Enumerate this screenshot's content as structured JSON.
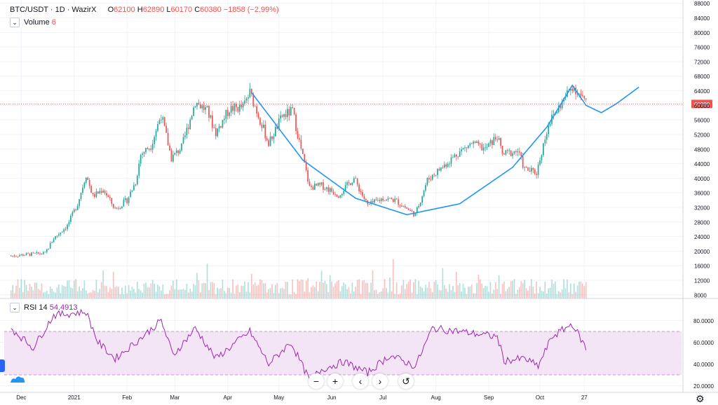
{
  "header": {
    "symbol": "BTC/USDT · 1D · WazirX",
    "open_label": "O",
    "open": "62100",
    "high_label": "H",
    "high": "62890",
    "low_label": "L",
    "low": "60170",
    "close_label": "C",
    "close": "60380",
    "change": "−1858 (−2.99%)"
  },
  "volume_legend": {
    "label": "Volume",
    "value": "6"
  },
  "rsi_legend": {
    "label": "RSI 14",
    "value": "54.4913"
  },
  "price_marker": "60380",
  "nav": {
    "zoom_out": "−",
    "zoom_in": "+",
    "left": "‹",
    "right": "›",
    "reset": "↺"
  },
  "colors": {
    "up": "#26a69a",
    "down": "#ef5350",
    "cup_line": "#2196f3",
    "rsi": "#9c27b0",
    "rsi_band": "#f3e5f5"
  },
  "chart_data": [
    {
      "type": "candlestick",
      "title": "BTC/USDT · 1D · WazirX",
      "x_tick_labels": [
        "Dec",
        "2021",
        "Feb",
        "Mar",
        "Apr",
        "May",
        "Jun",
        "Jul",
        "Aug",
        "Sep",
        "Oct",
        "27"
      ],
      "y_ticks": [
        8000,
        12000,
        16000,
        20000,
        24000,
        28000,
        32000,
        36000,
        40000,
        44000,
        48000,
        52000,
        56000,
        60000,
        64000,
        68000,
        72000,
        76000,
        80000,
        84000,
        88000
      ],
      "ylim": [
        8000,
        90000
      ],
      "last_price": 60380,
      "close_path": [
        [
          "2020-11-25",
          18700
        ],
        [
          "2020-12-05",
          19100
        ],
        [
          "2020-12-15",
          19400
        ],
        [
          "2020-12-20",
          23500
        ],
        [
          "2020-12-28",
          27000
        ],
        [
          "2021-01-03",
          33000
        ],
        [
          "2021-01-08",
          41000
        ],
        [
          "2021-01-12",
          35000
        ],
        [
          "2021-01-18",
          37000
        ],
        [
          "2021-01-25",
          31500
        ],
        [
          "2021-02-01",
          34000
        ],
        [
          "2021-02-06",
          39000
        ],
        [
          "2021-02-09",
          46500
        ],
        [
          "2021-02-15",
          49000
        ],
        [
          "2021-02-21",
          57500
        ],
        [
          "2021-02-27",
          45500
        ],
        [
          "2021-03-05",
          48500
        ],
        [
          "2021-03-13",
          61000
        ],
        [
          "2021-03-20",
          58500
        ],
        [
          "2021-03-25",
          52500
        ],
        [
          "2021-04-02",
          59000
        ],
        [
          "2021-04-10",
          59500
        ],
        [
          "2021-04-14",
          63500
        ],
        [
          "2021-04-20",
          56000
        ],
        [
          "2021-04-25",
          49500
        ],
        [
          "2021-05-03",
          57000
        ],
        [
          "2021-05-09",
          58500
        ],
        [
          "2021-05-13",
          50000
        ],
        [
          "2021-05-19",
          37500
        ],
        [
          "2021-05-26",
          38000
        ],
        [
          "2021-06-05",
          35500
        ],
        [
          "2021-06-14",
          40000
        ],
        [
          "2021-06-22",
          32500
        ],
        [
          "2021-07-01",
          34500
        ],
        [
          "2021-07-08",
          34000
        ],
        [
          "2021-07-20",
          30000
        ],
        [
          "2021-07-27",
          39500
        ],
        [
          "2021-08-07",
          44000
        ],
        [
          "2021-08-14",
          47000
        ],
        [
          "2021-08-22",
          49500
        ],
        [
          "2021-08-30",
          48000
        ],
        [
          "2021-09-06",
          51500
        ],
        [
          "2021-09-09",
          46500
        ],
        [
          "2021-09-18",
          47500
        ],
        [
          "2021-09-22",
          42500
        ],
        [
          "2021-09-29",
          41500
        ],
        [
          "2021-10-06",
          55000
        ],
        [
          "2021-10-15",
          61500
        ],
        [
          "2021-10-20",
          65500
        ],
        [
          "2021-10-25",
          62500
        ],
        [
          "2021-10-28",
          60380
        ]
      ],
      "cup_curve": [
        [
          "2021-04-15",
          63500
        ],
        [
          "2021-05-15",
          45000
        ],
        [
          "2021-06-15",
          34500
        ],
        [
          "2021-07-15",
          30000
        ],
        [
          "2021-08-15",
          33000
        ],
        [
          "2021-09-15",
          43000
        ],
        [
          "2021-10-05",
          54000
        ],
        [
          "2021-10-20",
          65500
        ],
        [
          "2021-10-28",
          60000
        ],
        [
          "2021-11-06",
          58000
        ],
        [
          "2021-11-15",
          60500
        ],
        [
          "2021-11-28",
          65000
        ]
      ]
    },
    {
      "type": "line",
      "title": "RSI 14",
      "y_ticks": [
        20,
        40,
        60,
        80
      ],
      "y_tick_labels": [
        "20.0000",
        "40.0000",
        "60.0000",
        "80.0000"
      ],
      "band": [
        30,
        70
      ],
      "ylim": [
        20,
        90
      ],
      "last_value": 54.4913,
      "path": [
        [
          "2020-11-25",
          73
        ],
        [
          "2020-12-08",
          55
        ],
        [
          "2020-12-20",
          85
        ],
        [
          "2021-01-08",
          88
        ],
        [
          "2021-01-15",
          60
        ],
        [
          "2021-01-25",
          45
        ],
        [
          "2021-02-10",
          65
        ],
        [
          "2021-02-21",
          80
        ],
        [
          "2021-02-28",
          48
        ],
        [
          "2021-03-13",
          73
        ],
        [
          "2021-03-25",
          45
        ],
        [
          "2021-04-10",
          65
        ],
        [
          "2021-04-14",
          70
        ],
        [
          "2021-04-25",
          40
        ],
        [
          "2021-05-08",
          60
        ],
        [
          "2021-05-19",
          25
        ],
        [
          "2021-05-26",
          35
        ],
        [
          "2021-06-08",
          42
        ],
        [
          "2021-06-22",
          32
        ],
        [
          "2021-07-05",
          48
        ],
        [
          "2021-07-20",
          38
        ],
        [
          "2021-07-30",
          73
        ],
        [
          "2021-08-15",
          70
        ],
        [
          "2021-09-06",
          65
        ],
        [
          "2021-09-10",
          43
        ],
        [
          "2021-09-22",
          45
        ],
        [
          "2021-09-30",
          38
        ],
        [
          "2021-10-08",
          65
        ],
        [
          "2021-10-20",
          77
        ],
        [
          "2021-10-28",
          54.4913
        ]
      ]
    }
  ]
}
